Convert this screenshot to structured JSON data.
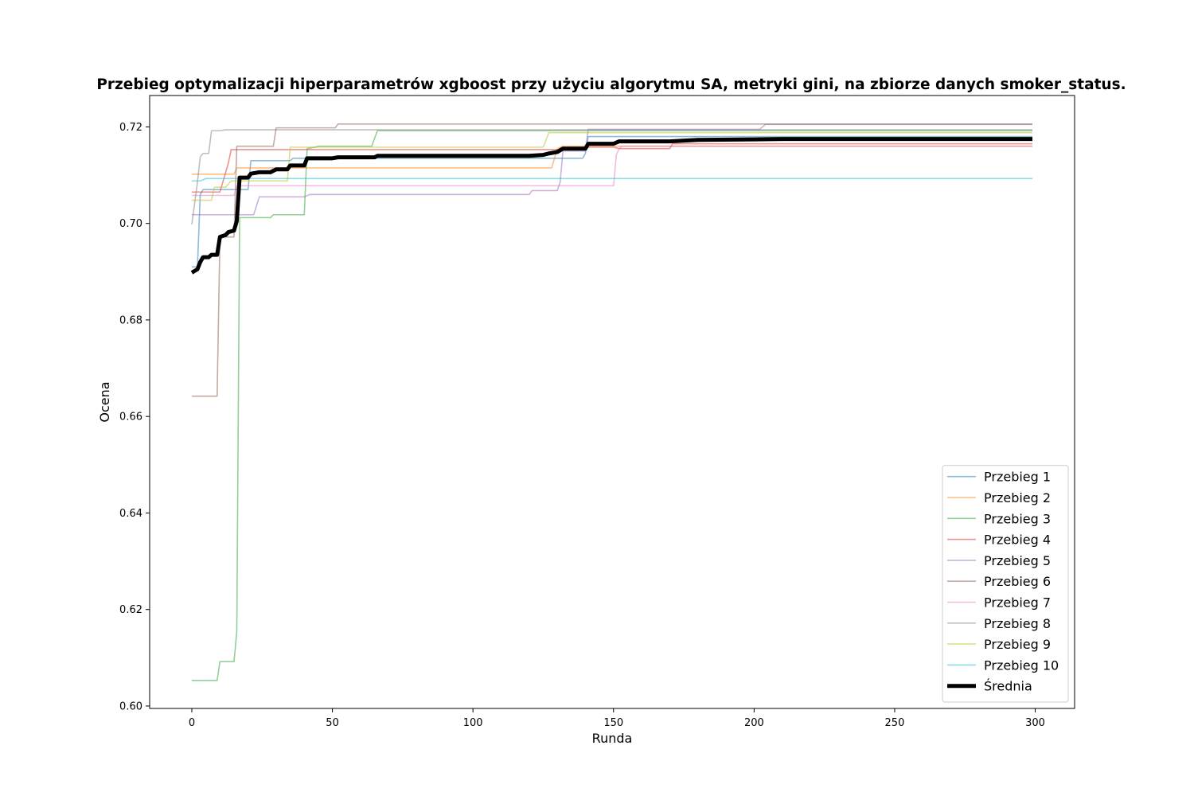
{
  "chart_data": {
    "type": "line",
    "title": "Przebieg optymalizacji hiperparametrów xgboost przy użyciu algorytmu SA, metryki gini, na zbiorze danych smoker_status.",
    "xlabel": "Runda",
    "ylabel": "Ocena",
    "xlim": [
      -15,
      314
    ],
    "ylim": [
      0.5995,
      0.7265
    ],
    "xticks": [
      0,
      50,
      100,
      150,
      200,
      250,
      300
    ],
    "xtick_labels": [
      "0",
      "50",
      "100",
      "150",
      "200",
      "250",
      "300"
    ],
    "yticks": [
      0.6,
      0.62,
      0.64,
      0.66,
      0.68,
      0.7,
      0.72
    ],
    "ytick_labels": [
      "0.60",
      "0.62",
      "0.64",
      "0.66",
      "0.68",
      "0.70",
      "0.72"
    ],
    "grid": false,
    "legend_position": "lower-right",
    "series": [
      {
        "name": "Przebieg 1",
        "color": "#1f77b4",
        "points": [
          [
            0,
            0.691
          ],
          [
            2,
            0.691
          ],
          [
            3,
            0.706
          ],
          [
            4,
            0.707
          ],
          [
            20,
            0.707
          ],
          [
            21,
            0.713
          ],
          [
            35,
            0.713
          ],
          [
            36,
            0.7135
          ],
          [
            130,
            0.7135
          ],
          [
            139,
            0.7135
          ],
          [
            140,
            0.7145
          ],
          [
            141,
            0.718
          ],
          [
            299,
            0.718
          ]
        ]
      },
      {
        "name": "Przebieg 2",
        "color": "#ff7f0e",
        "points": [
          [
            0,
            0.7102
          ],
          [
            15,
            0.7102
          ],
          [
            16,
            0.7115
          ],
          [
            128,
            0.7115
          ],
          [
            129,
            0.7135
          ],
          [
            130,
            0.7155
          ],
          [
            132,
            0.716
          ],
          [
            299,
            0.716
          ]
        ]
      },
      {
        "name": "Przebieg 3",
        "color": "#2ca02c",
        "points": [
          [
            0,
            0.6053
          ],
          [
            9,
            0.6053
          ],
          [
            10,
            0.6092
          ],
          [
            15,
            0.6092
          ],
          [
            16,
            0.6155
          ],
          [
            17,
            0.7012
          ],
          [
            28,
            0.7012
          ],
          [
            29,
            0.7018
          ],
          [
            40,
            0.7018
          ],
          [
            41,
            0.7155
          ],
          [
            44,
            0.7158
          ],
          [
            45,
            0.716
          ],
          [
            64,
            0.716
          ],
          [
            66,
            0.7192
          ],
          [
            299,
            0.7192
          ]
        ]
      },
      {
        "name": "Przebieg 4",
        "color": "#d62728",
        "points": [
          [
            0,
            0.7065
          ],
          [
            10,
            0.7065
          ],
          [
            13,
            0.7125
          ],
          [
            14,
            0.7153
          ],
          [
            140,
            0.7153
          ],
          [
            141,
            0.7158
          ],
          [
            150,
            0.7158
          ],
          [
            152,
            0.7155
          ],
          [
            170,
            0.7155
          ],
          [
            171,
            0.7165
          ],
          [
            299,
            0.7165
          ]
        ]
      },
      {
        "name": "Przebieg 5",
        "color": "#9467bd",
        "points": [
          [
            0,
            0.7018
          ],
          [
            22,
            0.7018
          ],
          [
            24,
            0.7055
          ],
          [
            40,
            0.7055
          ],
          [
            42,
            0.706
          ],
          [
            120,
            0.706
          ],
          [
            121,
            0.7068
          ],
          [
            130,
            0.7068
          ],
          [
            131,
            0.7085
          ],
          [
            132,
            0.715
          ],
          [
            140,
            0.715
          ],
          [
            141,
            0.7195
          ],
          [
            202,
            0.7195
          ],
          [
            204,
            0.7205
          ],
          [
            299,
            0.7205
          ]
        ]
      },
      {
        "name": "Przebieg 6",
        "color": "#8c564b",
        "points": [
          [
            0,
            0.6642
          ],
          [
            9,
            0.6642
          ],
          [
            10,
            0.6972
          ],
          [
            15,
            0.6972
          ],
          [
            16,
            0.716
          ],
          [
            29,
            0.716
          ],
          [
            30,
            0.7198
          ],
          [
            51,
            0.7198
          ],
          [
            52,
            0.7206
          ],
          [
            299,
            0.7206
          ]
        ]
      },
      {
        "name": "Przebieg 7",
        "color": "#e377c2",
        "points": [
          [
            0,
            0.7058
          ],
          [
            15,
            0.7058
          ],
          [
            16,
            0.7078
          ],
          [
            150,
            0.7078
          ],
          [
            151,
            0.7142
          ],
          [
            152,
            0.7155
          ],
          [
            153,
            0.716
          ],
          [
            299,
            0.716
          ]
        ]
      },
      {
        "name": "Przebieg 8",
        "color": "#7f7f7f",
        "points": [
          [
            0,
            0.6998
          ],
          [
            2,
            0.7085
          ],
          [
            3,
            0.7138
          ],
          [
            4,
            0.7145
          ],
          [
            6,
            0.7145
          ],
          [
            7,
            0.7192
          ],
          [
            10,
            0.7192
          ],
          [
            12,
            0.7194
          ],
          [
            299,
            0.7194
          ]
        ]
      },
      {
        "name": "Przebieg 9",
        "color": "#bcbd22",
        "points": [
          [
            0,
            0.7048
          ],
          [
            7,
            0.7048
          ],
          [
            8,
            0.7075
          ],
          [
            12,
            0.7075
          ],
          [
            14,
            0.7088
          ],
          [
            34,
            0.7088
          ],
          [
            35,
            0.7158
          ],
          [
            125,
            0.7158
          ],
          [
            127,
            0.7188
          ],
          [
            299,
            0.7188
          ]
        ]
      },
      {
        "name": "Przebieg 10",
        "color": "#17becf",
        "points": [
          [
            0,
            0.7088
          ],
          [
            3,
            0.7088
          ],
          [
            5,
            0.7093
          ],
          [
            299,
            0.7093
          ]
        ]
      },
      {
        "name": "Średnia",
        "color": "#000000",
        "points": [
          [
            0,
            0.6898
          ],
          [
            2,
            0.6905
          ],
          [
            3,
            0.692
          ],
          [
            4,
            0.693
          ],
          [
            6,
            0.693
          ],
          [
            7,
            0.6935
          ],
          [
            9,
            0.6935
          ],
          [
            10,
            0.6972
          ],
          [
            12,
            0.6976
          ],
          [
            13,
            0.6982
          ],
          [
            15,
            0.6985
          ],
          [
            16,
            0.7005
          ],
          [
            17,
            0.7095
          ],
          [
            20,
            0.7095
          ],
          [
            21,
            0.7103
          ],
          [
            24,
            0.7106
          ],
          [
            28,
            0.7106
          ],
          [
            30,
            0.7112
          ],
          [
            34,
            0.7112
          ],
          [
            35,
            0.712
          ],
          [
            40,
            0.712
          ],
          [
            41,
            0.7135
          ],
          [
            50,
            0.7135
          ],
          [
            52,
            0.7137
          ],
          [
            65,
            0.7137
          ],
          [
            66,
            0.714
          ],
          [
            120,
            0.714
          ],
          [
            125,
            0.7142
          ],
          [
            127,
            0.7145
          ],
          [
            130,
            0.7148
          ],
          [
            132,
            0.7155
          ],
          [
            140,
            0.7155
          ],
          [
            141,
            0.7165
          ],
          [
            150,
            0.7165
          ],
          [
            152,
            0.717
          ],
          [
            170,
            0.717
          ],
          [
            180,
            0.7173
          ],
          [
            200,
            0.7174
          ],
          [
            210,
            0.7175
          ],
          [
            299,
            0.7175
          ]
        ]
      }
    ]
  }
}
